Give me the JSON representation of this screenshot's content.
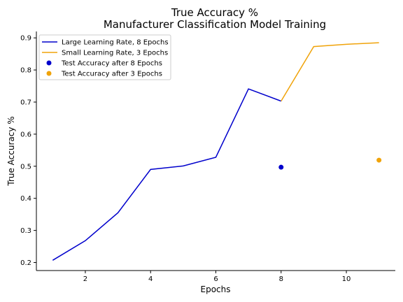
{
  "chart_data": {
    "type": "line",
    "title": [
      "True Accuracy %",
      "Manufacturer Classification Model Training"
    ],
    "xlabel": "Epochs",
    "ylabel": "True Accuracy %",
    "xlim": [
      0.5,
      11.5
    ],
    "ylim": [
      0.175,
      0.92
    ],
    "xticks": [
      2,
      4,
      6,
      8,
      10
    ],
    "yticks": [
      0.2,
      0.3,
      0.4,
      0.5,
      0.6,
      0.7,
      0.8,
      0.9
    ],
    "grid": false,
    "legend_position": "top-left",
    "series": [
      {
        "name": "Large Learning Rate, 8 Epochs",
        "kind": "line",
        "color": "#0000cc",
        "x": [
          1,
          2,
          3,
          4,
          5,
          6,
          7,
          8
        ],
        "y": [
          0.207,
          0.268,
          0.355,
          0.49,
          0.501,
          0.528,
          0.741,
          0.703
        ]
      },
      {
        "name": "Small Learning Rate, 3 Epochs",
        "kind": "line",
        "color": "#f0a30a",
        "x": [
          8,
          9,
          10,
          11
        ],
        "y": [
          0.703,
          0.873,
          0.88,
          0.885
        ]
      },
      {
        "name": "Test Accuracy after 8 Epochs",
        "kind": "scatter",
        "color": "#0000cc",
        "x": [
          8
        ],
        "y": [
          0.497
        ]
      },
      {
        "name": "Test Accuracy after 3 Epochs",
        "kind": "scatter",
        "color": "#f0a30a",
        "x": [
          11
        ],
        "y": [
          0.519
        ]
      }
    ]
  }
}
